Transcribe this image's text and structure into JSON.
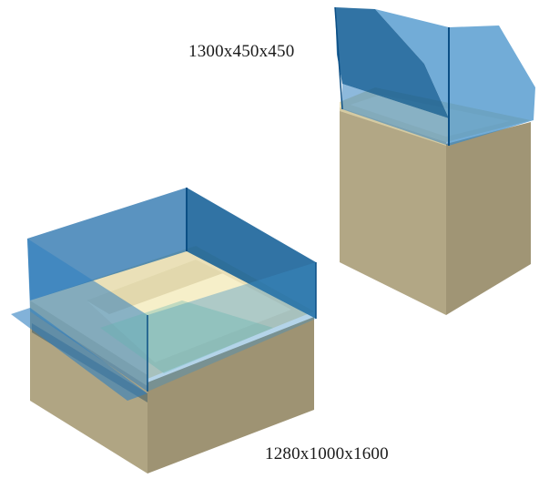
{
  "labels": {
    "small_unit": "1300x450x450",
    "large_unit": "1280x1000x1600"
  },
  "colors": {
    "cabinet_front": "#b0a583",
    "cabinet_side": "#9f9474",
    "cabinet_top_edge": "#d8cda6",
    "interior_floor": "#f3ebc5",
    "interior_back": "#e6dcb2",
    "glass": "#2f7fbf",
    "glass_dark": "#0d4f86"
  },
  "icons": {
    "small_cabinet": "display-cabinet-icon",
    "large_cabinet": "display-cabinet-icon"
  }
}
